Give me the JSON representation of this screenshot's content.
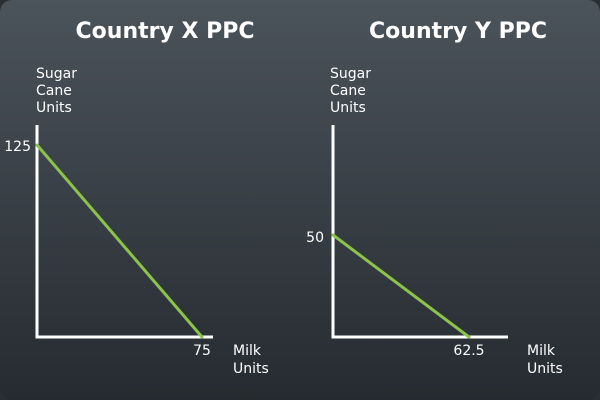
{
  "colors": {
    "line": "#8bc34a",
    "axis": "#ffffff",
    "text": "#ffffff"
  },
  "chart_data": [
    {
      "type": "line",
      "title": "Country X PPC",
      "ylabel_lines": [
        "Sugar",
        "Cane",
        "Units"
      ],
      "xlabel_lines": [
        "Milk",
        "Units"
      ],
      "x": [
        0,
        75
      ],
      "y": [
        125,
        0
      ],
      "x_tick_label": "75",
      "y_tick_label": "125",
      "xlim": [
        0,
        75
      ],
      "ylim": [
        0,
        125
      ],
      "grid": false
    },
    {
      "type": "line",
      "title": "Country Y PPC",
      "ylabel_lines": [
        "Sugar",
        "Cane",
        "Units"
      ],
      "xlabel_lines": [
        "Milk",
        "Units"
      ],
      "x": [
        0,
        62.5
      ],
      "y": [
        50,
        0
      ],
      "x_tick_label": "62.5",
      "y_tick_label": "50",
      "xlim": [
        0,
        75
      ],
      "ylim": [
        0,
        125
      ],
      "grid": false
    }
  ]
}
